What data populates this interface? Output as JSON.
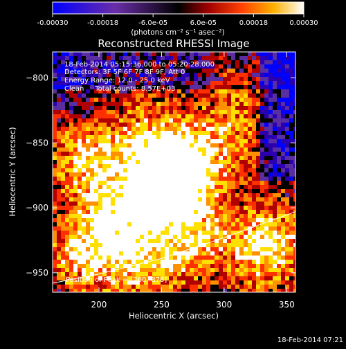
{
  "colorbar": {
    "tick_labels": [
      "-0.00030",
      "-0.00018",
      "-6.0e-05",
      "6.0e-05",
      "0.00018",
      "0.00030"
    ],
    "tick_values": [
      -0.0003,
      -0.00018,
      -6e-05,
      6e-05,
      0.00018,
      0.0003
    ],
    "range": [
      -0.0003,
      0.0003
    ],
    "units_label": "(photons cm⁻² s⁻¹ asec⁻²)"
  },
  "chart_data": {
    "type": "heatmap",
    "title": "Reconstructed RHESSI Image",
    "xlabel": "Heliocentric X (arcsec)",
    "ylabel": "Heliocentric Y (arcsec)",
    "xlim": [
      163,
      357
    ],
    "ylim": [
      -965,
      -780
    ],
    "x_ticks": [
      200,
      250,
      300,
      350
    ],
    "x_tick_labels": [
      "200",
      "250",
      "300",
      "350"
    ],
    "y_ticks": [
      -800,
      -850,
      -900,
      -950
    ],
    "y_tick_labels": [
      "−800",
      "−850",
      "−900",
      "−950"
    ],
    "grid": false,
    "colormap": "blue-purple-black-red-orange-yellow-white",
    "colormap_colors": [
      "#0000ff",
      "#2a00b0",
      "#5a2ea0",
      "#000000",
      "#b00000",
      "#ff3000",
      "#ff9000",
      "#ffe000",
      "#ffffff"
    ],
    "peak": [
      260,
      -878
    ],
    "limb_curve": {
      "x": [
        163,
        200,
        250,
        300,
        357
      ],
      "y": [
        -958,
        -951,
        -939,
        -923,
        -903
      ]
    },
    "annotations": [
      "18-Feb-2014 05:15:36.000 to 05:20:28.000",
      "Detectors: 3F 5F 6F 7F 8F 9F, Att 0",
      "Energy Range: 12.0 - 25.0 keV",
      "Clean     Total counts: 8.57E+03"
    ],
    "peak_label": "Position of Peak = [260,-878]"
  },
  "timestamp": "18-Feb-2014 07:21"
}
